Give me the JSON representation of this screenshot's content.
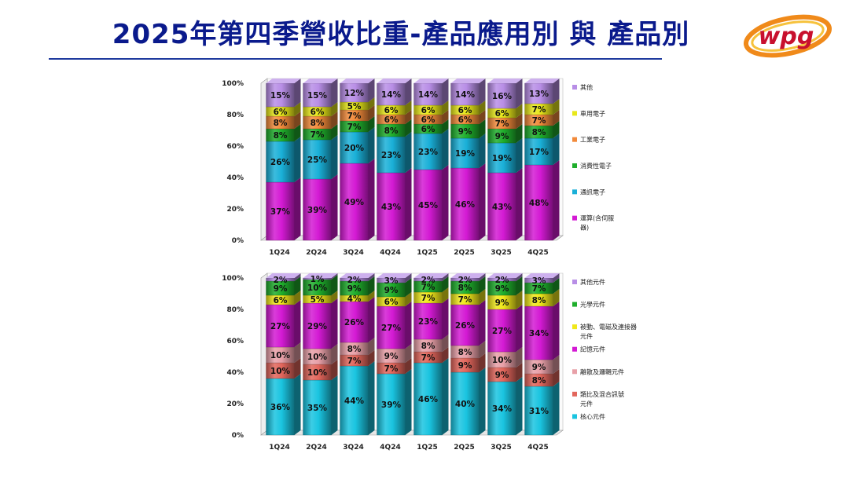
{
  "header": {
    "title": "2025年第四季營收比重-產品應用別 與 產品別",
    "logo_text": "wpg",
    "rule_color": "#1f3a9e",
    "title_color": "#0a1a8c"
  },
  "chart_data": [
    {
      "type": "bar",
      "stacked": true,
      "percent": true,
      "title": "",
      "categories": [
        "1Q24",
        "2Q24",
        "3Q24",
        "4Q24",
        "1Q25",
        "2Q25",
        "3Q25",
        "4Q25"
      ],
      "y_ticks": [
        "0%",
        "20%",
        "40%",
        "60%",
        "80%",
        "100%"
      ],
      "ylim": [
        0,
        100
      ],
      "legend_position": "right",
      "series": [
        {
          "name": "運算(含伺服器)",
          "color": "#d41ad4",
          "values": [
            37,
            39,
            49,
            43,
            45,
            46,
            43,
            48
          ]
        },
        {
          "name": "通訊電子",
          "color": "#1ab0d8",
          "values": [
            26,
            25,
            20,
            23,
            23,
            19,
            19,
            17
          ]
        },
        {
          "name": "消費性電子",
          "color": "#1fae2c",
          "values": [
            8,
            7,
            7,
            8,
            6,
            9,
            9,
            8
          ]
        },
        {
          "name": "工業電子",
          "color": "#f28a3b",
          "values": [
            8,
            8,
            7,
            6,
            6,
            6,
            7,
            7
          ]
        },
        {
          "name": "車用電子",
          "color": "#e8e81a",
          "values": [
            6,
            6,
            5,
            6,
            6,
            6,
            6,
            7
          ]
        },
        {
          "name": "其他",
          "color": "#b88ee6",
          "values": [
            15,
            15,
            12,
            14,
            14,
            14,
            16,
            13
          ]
        }
      ]
    },
    {
      "type": "bar",
      "stacked": true,
      "percent": true,
      "title": "",
      "categories": [
        "1Q24",
        "2Q24",
        "3Q24",
        "4Q24",
        "1Q25",
        "2Q25",
        "3Q25",
        "4Q25"
      ],
      "y_ticks": [
        "0%",
        "20%",
        "40%",
        "60%",
        "80%",
        "100%"
      ],
      "ylim": [
        0,
        100
      ],
      "legend_position": "right",
      "series": [
        {
          "name": "核心元件",
          "color": "#1ac4e0",
          "values": [
            36,
            35,
            44,
            39,
            46,
            40,
            34,
            31
          ]
        },
        {
          "name": "類比及混合訊號元件",
          "color": "#e2665c",
          "values": [
            10,
            10,
            7,
            7,
            7,
            9,
            9,
            8
          ]
        },
        {
          "name": "離散及邏輯元件",
          "color": "#e8a0a8",
          "values": [
            10,
            10,
            8,
            9,
            8,
            8,
            10,
            9
          ]
        },
        {
          "name": "記憶元件",
          "color": "#d41ad4",
          "values": [
            27,
            29,
            26,
            27,
            23,
            26,
            27,
            34
          ]
        },
        {
          "name": "被動、電磁及連接器元件",
          "color": "#f0e81a",
          "values": [
            6,
            5,
            4,
            6,
            7,
            7,
            9,
            8
          ]
        },
        {
          "name": "光學元件",
          "color": "#1fae2c",
          "values": [
            9,
            10,
            9,
            9,
            7,
            8,
            9,
            7
          ]
        },
        {
          "name": "其他元件",
          "color": "#b88ee6",
          "values": [
            2,
            1,
            2,
            3,
            2,
            2,
            2,
            3
          ]
        }
      ]
    }
  ]
}
